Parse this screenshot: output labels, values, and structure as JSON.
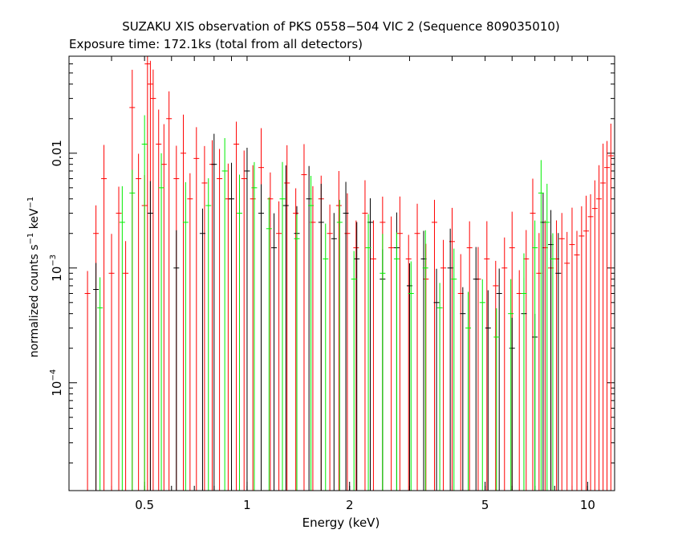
{
  "chart_data": {
    "type": "scatter",
    "title": "SUZAKU XIS observation of PKS 0558−504 VIC 2 (Sequence 809035010)",
    "subtitle": "Exposure time: 172.1ks (total from all detectors)",
    "xlabel": "Energy (keV)",
    "ylabel": {
      "prefix": "normalized counts s",
      "exp1": "−1",
      "mid": " keV",
      "exp2": "−1"
    },
    "x_scale": "log",
    "y_scale": "log",
    "xlim": [
      0.3,
      12
    ],
    "ylim": [
      1.15e-05,
      0.07
    ],
    "x_ticks": [
      {
        "value": 0.5,
        "label": "0.5"
      },
      {
        "value": 1,
        "label": "1"
      },
      {
        "value": 2,
        "label": "2"
      },
      {
        "value": 5,
        "label": "5"
      },
      {
        "value": 10,
        "label": "10"
      }
    ],
    "y_ticks": [
      {
        "value": 0.01,
        "base": "0.01",
        "exp": ""
      },
      {
        "value": 0.001,
        "base": "10",
        "exp": "−3"
      },
      {
        "value": 0.0001,
        "base": "10",
        "exp": "−4"
      }
    ],
    "grid": false,
    "legend": "none",
    "series": [
      {
        "color": "#ff0000",
        "points": [
          [
            0.34,
            0.0006
          ],
          [
            0.36,
            0.002
          ],
          [
            0.38,
            0.006
          ],
          [
            0.4,
            0.0009
          ],
          [
            0.42,
            0.003
          ],
          [
            0.44,
            0.0009
          ],
          [
            0.46,
            0.025
          ],
          [
            0.48,
            0.006
          ],
          [
            0.5,
            0.0035
          ],
          [
            0.51,
            0.06
          ],
          [
            0.52,
            0.04
          ],
          [
            0.53,
            0.03
          ],
          [
            0.55,
            0.012
          ],
          [
            0.57,
            0.008
          ],
          [
            0.59,
            0.02
          ],
          [
            0.62,
            0.006
          ],
          [
            0.65,
            0.01
          ],
          [
            0.68,
            0.004
          ],
          [
            0.71,
            0.009
          ],
          [
            0.75,
            0.0055
          ],
          [
            0.79,
            0.008
          ],
          [
            0.83,
            0.006
          ],
          [
            0.88,
            0.004
          ],
          [
            0.93,
            0.012
          ],
          [
            0.98,
            0.006
          ],
          [
            1.04,
            0.004
          ],
          [
            1.1,
            0.0075
          ],
          [
            1.17,
            0.004
          ],
          [
            1.24,
            0.002
          ],
          [
            1.31,
            0.0055
          ],
          [
            1.39,
            0.003
          ],
          [
            1.47,
            0.0065
          ],
          [
            1.56,
            0.0025
          ],
          [
            1.65,
            0.004
          ],
          [
            1.75,
            0.002
          ],
          [
            1.86,
            0.0035
          ],
          [
            1.97,
            0.002
          ],
          [
            2.09,
            0.0015
          ],
          [
            2.22,
            0.003
          ],
          [
            2.35,
            0.0012
          ],
          [
            2.5,
            0.0025
          ],
          [
            2.65,
            0.0015
          ],
          [
            2.81,
            0.002
          ],
          [
            2.98,
            0.0012
          ],
          [
            3.16,
            0.002
          ],
          [
            3.35,
            0.0008
          ],
          [
            3.55,
            0.0025
          ],
          [
            3.77,
            0.001
          ],
          [
            4.0,
            0.0017
          ],
          [
            4.24,
            0.0006
          ],
          [
            4.5,
            0.0015
          ],
          [
            4.77,
            0.0008
          ],
          [
            5.06,
            0.0012
          ],
          [
            5.37,
            0.0007
          ],
          [
            5.7,
            0.001
          ],
          [
            6.0,
            0.0015
          ],
          [
            6.3,
            0.0006
          ],
          [
            6.6,
            0.0012
          ],
          [
            6.9,
            0.003
          ],
          [
            7.2,
            0.0009
          ],
          [
            7.5,
            0.0015
          ],
          [
            7.8,
            0.001
          ],
          [
            8.1,
            0.0012
          ],
          [
            8.4,
            0.0018
          ],
          [
            8.7,
            0.0011
          ],
          [
            9.0,
            0.0016
          ],
          [
            9.3,
            0.0013
          ],
          [
            9.6,
            0.0019
          ],
          [
            9.9,
            0.0021
          ],
          [
            10.2,
            0.0028
          ],
          [
            10.5,
            0.0033
          ],
          [
            10.8,
            0.004
          ],
          [
            11.1,
            0.0055
          ],
          [
            11.4,
            0.0075
          ],
          [
            11.7,
            0.0095
          ]
        ]
      },
      {
        "color": "#000000",
        "points": [
          [
            0.36,
            0.00065
          ],
          [
            0.52,
            0.003
          ],
          [
            0.62,
            0.001
          ],
          [
            0.74,
            0.002
          ],
          [
            0.8,
            0.008
          ],
          [
            0.9,
            0.004
          ],
          [
            1.0,
            0.007
          ],
          [
            1.1,
            0.003
          ],
          [
            1.2,
            0.0015
          ],
          [
            1.3,
            0.0035
          ],
          [
            1.4,
            0.002
          ],
          [
            1.52,
            0.004
          ],
          [
            1.65,
            0.0025
          ],
          [
            1.8,
            0.0018
          ],
          [
            1.95,
            0.003
          ],
          [
            2.1,
            0.0012
          ],
          [
            2.3,
            0.0025
          ],
          [
            2.5,
            0.0008
          ],
          [
            2.75,
            0.0015
          ],
          [
            3.0,
            0.0007
          ],
          [
            3.3,
            0.0012
          ],
          [
            3.6,
            0.0005
          ],
          [
            3.95,
            0.001
          ],
          [
            4.3,
            0.0004
          ],
          [
            4.7,
            0.0008
          ],
          [
            5.1,
            0.0003
          ],
          [
            5.5,
            0.0006
          ],
          [
            6.0,
            0.0002
          ],
          [
            6.5,
            0.0004
          ],
          [
            7.0,
            0.00025
          ],
          [
            7.4,
            0.0025
          ],
          [
            7.8,
            0.0016
          ],
          [
            8.2,
            0.0009
          ]
        ]
      },
      {
        "color": "#00ee00",
        "points": [
          [
            0.37,
            0.00045
          ],
          [
            0.43,
            0.0025
          ],
          [
            0.46,
            0.0045
          ],
          [
            0.5,
            0.012
          ],
          [
            0.56,
            0.005
          ],
          [
            0.66,
            0.0025
          ],
          [
            0.77,
            0.0035
          ],
          [
            0.86,
            0.007
          ],
          [
            0.95,
            0.003
          ],
          [
            1.05,
            0.005
          ],
          [
            1.16,
            0.0022
          ],
          [
            1.27,
            0.004
          ],
          [
            1.4,
            0.0018
          ],
          [
            1.54,
            0.0035
          ],
          [
            1.7,
            0.0012
          ],
          [
            1.87,
            0.0025
          ],
          [
            2.06,
            0.0008
          ],
          [
            2.27,
            0.0015
          ],
          [
            2.5,
            0.0009
          ],
          [
            2.75,
            0.0012
          ],
          [
            3.03,
            0.0006
          ],
          [
            3.34,
            0.001
          ],
          [
            3.68,
            0.00045
          ],
          [
            4.05,
            0.0008
          ],
          [
            4.46,
            0.0003
          ],
          [
            4.91,
            0.0005
          ],
          [
            5.4,
            0.00025
          ],
          [
            5.95,
            0.0004
          ],
          [
            6.5,
            0.0006
          ],
          [
            7.0,
            0.0015
          ],
          [
            7.3,
            0.0045
          ],
          [
            7.6,
            0.0025
          ],
          [
            7.9,
            0.0012
          ]
        ]
      }
    ]
  }
}
